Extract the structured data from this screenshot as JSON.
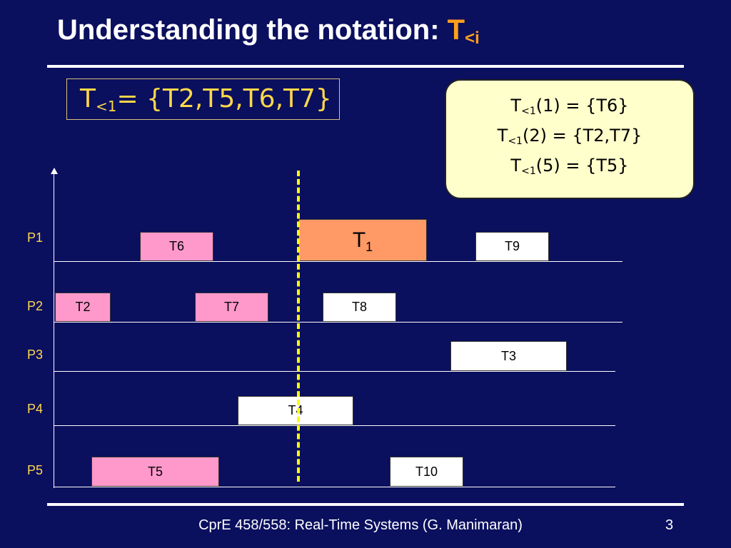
{
  "title": {
    "text": "Understanding the notation: ",
    "accent_main": "T",
    "accent_sub": "<i"
  },
  "definition": {
    "prefix": "T",
    "sub": "<1",
    "rest": "= {T2,T5,T6,T7}"
  },
  "callout": {
    "lines": [
      {
        "prefix": "T",
        "sub": "<1",
        "rest": "(1) = {T6}"
      },
      {
        "prefix": "T",
        "sub": "<1",
        "rest": "(2) = {T2,T7}"
      },
      {
        "prefix": "T",
        "sub": "<1",
        "rest": "(5) = {T5}"
      }
    ]
  },
  "processors": [
    "P1",
    "P2",
    "P3",
    "P4",
    "P5"
  ],
  "tasks": {
    "t6": "T6",
    "t1_main": "T",
    "t1_sub": "1",
    "t9": "T9",
    "t2": "T2",
    "t7": "T7",
    "t8": "T8",
    "t3": "T3",
    "t4": "T4",
    "t5": "T5",
    "t10": "T10"
  },
  "footer": {
    "text": "CprE 458/558: Real-Time Systems (G. Manimaran)",
    "page": "3"
  },
  "colors": {
    "background": "#0a0f5e",
    "title_accent": "#ff9f1c",
    "definition_text": "#ffd84a",
    "callout_bg": "#ffffcc",
    "task_pink": "#ff99cc",
    "task_white": "#ffffff",
    "task_t1": "#ff9966",
    "cut_line": "#ffff00",
    "processor_label": "#ffd84a"
  }
}
